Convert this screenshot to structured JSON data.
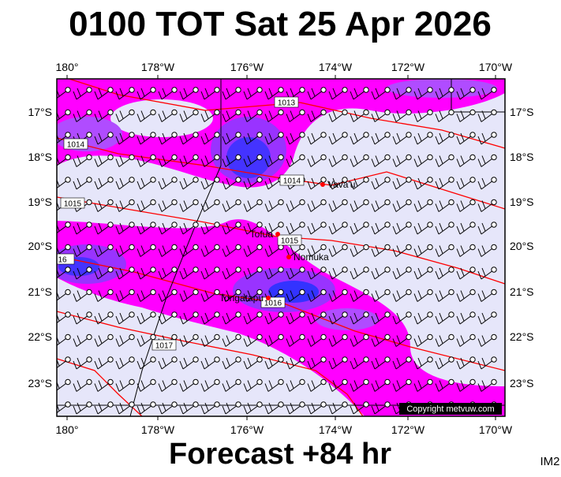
{
  "header": {
    "title": "0100 TOT Sat 25 Apr 2026"
  },
  "map": {
    "lon_labels": [
      "180°",
      "178°W",
      "176°W",
      "174°W",
      "172°W",
      "170°W"
    ],
    "lat_labels": [
      "17°S",
      "18°S",
      "19°S",
      "20°S",
      "21°S",
      "22°S",
      "23°S"
    ],
    "places": [
      "Vava'u",
      "Tofua",
      "Nomuka",
      "Tongatapu"
    ],
    "isobar_labels": [
      "1013",
      "1014",
      "1014",
      "1015",
      "1015",
      "1016",
      "1017",
      "16"
    ],
    "copyright": "Copyright metvuw.com"
  },
  "footer": {
    "forecast": "Forecast +84 hr",
    "image_id": "IM2"
  }
}
